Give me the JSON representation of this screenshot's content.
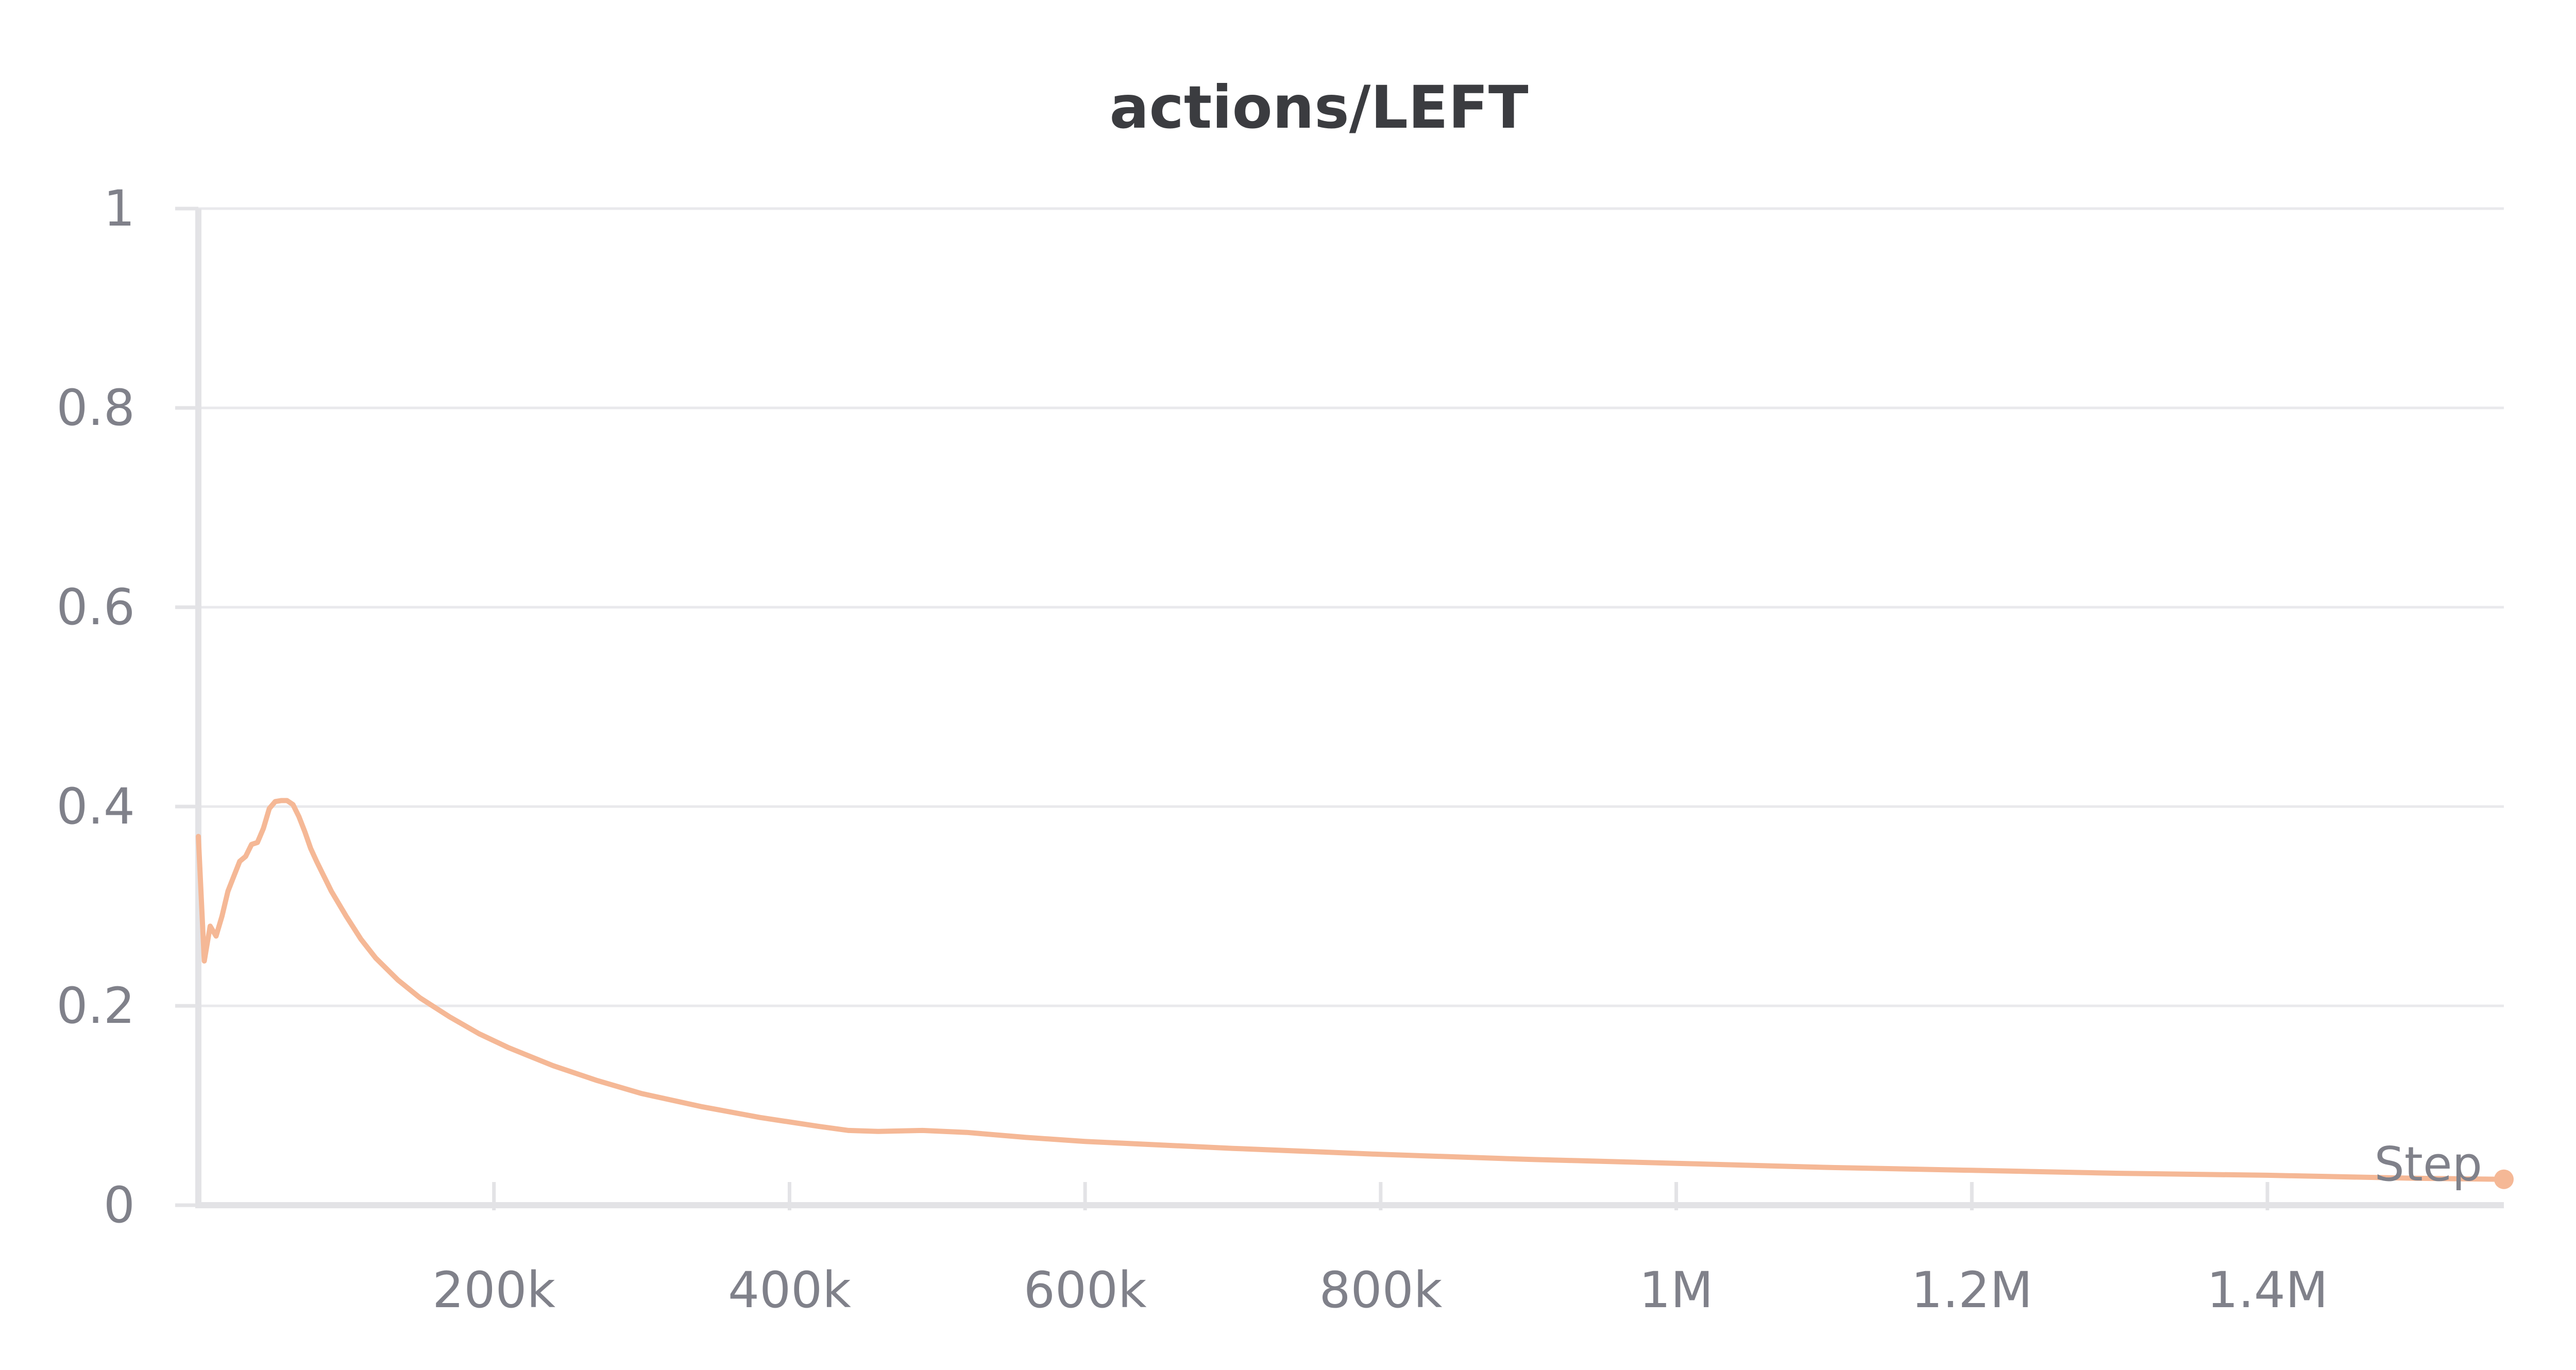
{
  "chart_data": {
    "type": "line",
    "title": "actions/LEFT",
    "xlabel": "Step",
    "ylabel": "",
    "xlim": [
      0,
      1560000
    ],
    "ylim": [
      0,
      1
    ],
    "x_ticks": [
      {
        "value": 200000,
        "label": "200k"
      },
      {
        "value": 400000,
        "label": "400k"
      },
      {
        "value": 600000,
        "label": "600k"
      },
      {
        "value": 800000,
        "label": "800k"
      },
      {
        "value": 1000000,
        "label": "1M"
      },
      {
        "value": 1200000,
        "label": "1.2M"
      },
      {
        "value": 1400000,
        "label": "1.4M"
      }
    ],
    "y_ticks": [
      {
        "value": 0,
        "label": "0"
      },
      {
        "value": 0.2,
        "label": "0.2"
      },
      {
        "value": 0.4,
        "label": "0.4"
      },
      {
        "value": 0.6,
        "label": "0.6"
      },
      {
        "value": 0.8,
        "label": "0.8"
      },
      {
        "value": 1,
        "label": "1"
      }
    ],
    "grid": true,
    "colors": {
      "series": "#f5b896"
    },
    "series": [
      {
        "x": [
          0,
          4000,
          8000,
          12000,
          16000,
          20000,
          24000,
          28000,
          32000,
          36000,
          40000,
          44000,
          48000,
          52000,
          56000,
          60000,
          64000,
          68000,
          72000,
          76000,
          80000,
          85000,
          90000,
          100000,
          110000,
          120000,
          135000,
          150000,
          170000,
          190000,
          210000,
          240000,
          270000,
          300000,
          340000,
          380000,
          420000,
          440000,
          460000,
          490000,
          520000,
          560000,
          600000,
          700000,
          800000,
          900000,
          1000000,
          1100000,
          1200000,
          1300000,
          1400000,
          1500000,
          1560000
        ],
        "y": [
          0.37,
          0.245,
          0.28,
          0.27,
          0.29,
          0.315,
          0.33,
          0.345,
          0.35,
          0.362,
          0.364,
          0.378,
          0.398,
          0.405,
          0.406,
          0.406,
          0.402,
          0.39,
          0.375,
          0.358,
          0.345,
          0.33,
          0.315,
          0.29,
          0.267,
          0.248,
          0.226,
          0.208,
          0.189,
          0.172,
          0.158,
          0.14,
          0.125,
          0.112,
          0.099,
          0.088,
          0.079,
          0.075,
          0.074,
          0.075,
          0.073,
          0.068,
          0.064,
          0.057,
          0.051,
          0.046,
          0.042,
          0.038,
          0.035,
          0.032,
          0.03,
          0.027,
          0.026
        ]
      }
    ]
  }
}
